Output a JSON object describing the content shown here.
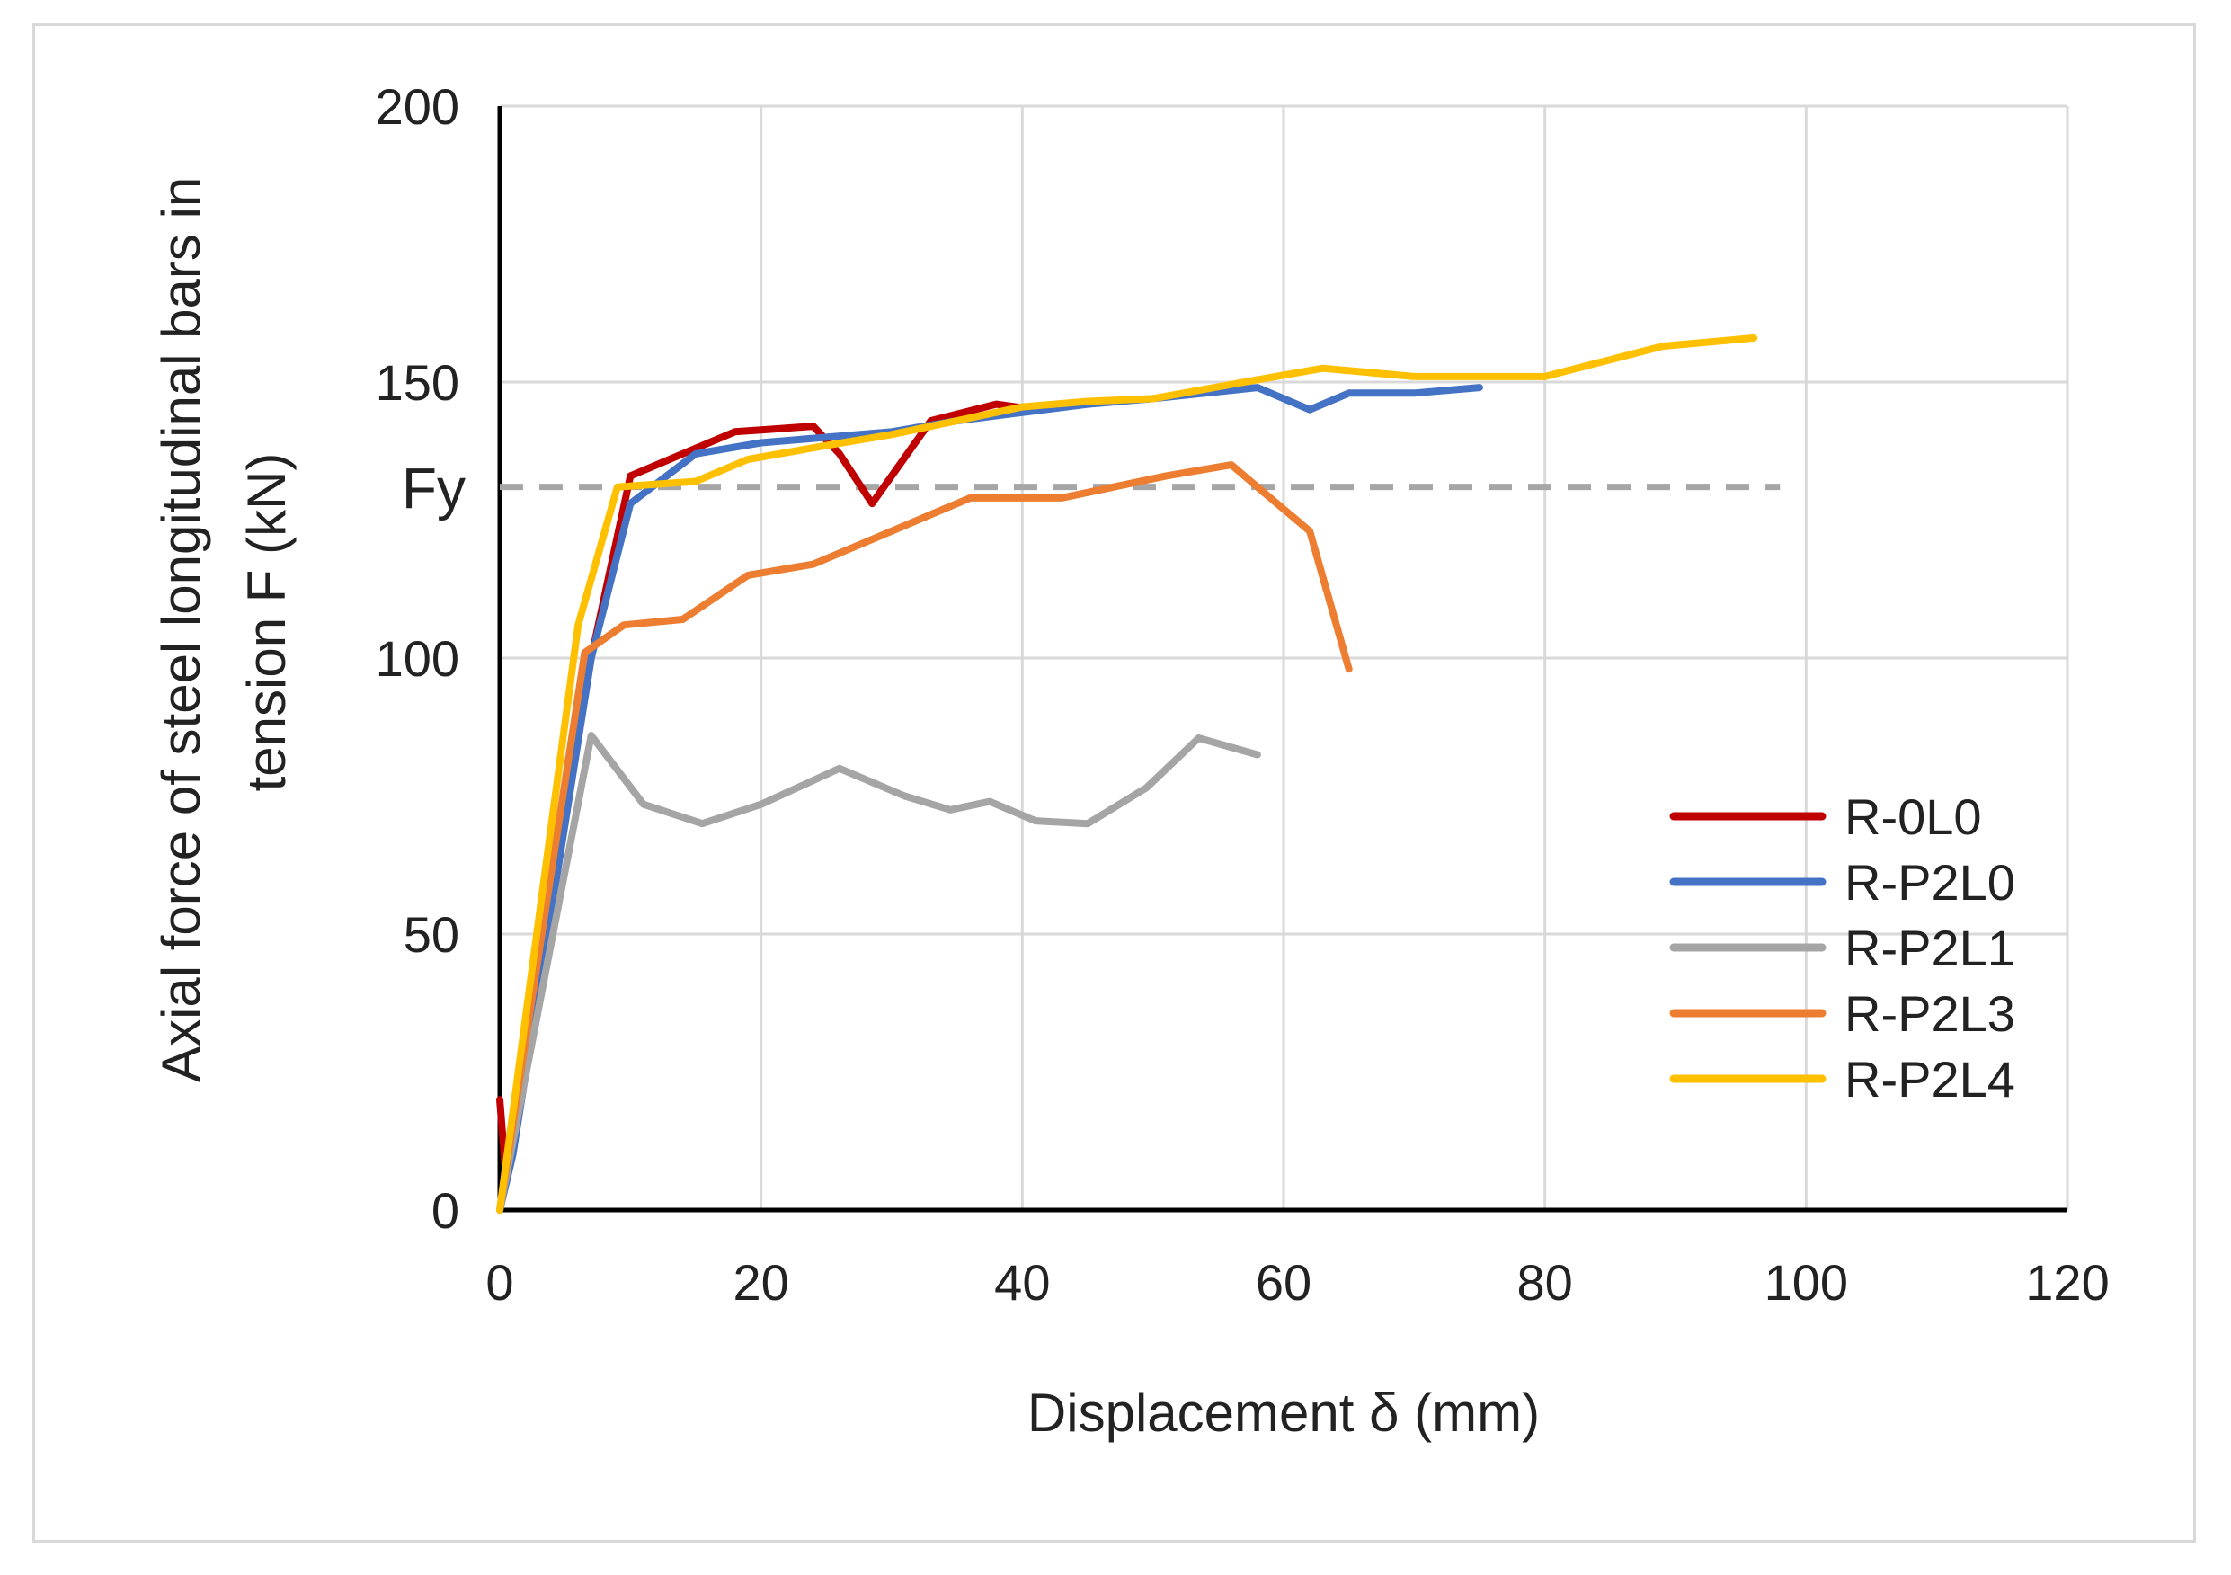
{
  "chart_data": {
    "type": "line",
    "title": "",
    "xlabel": "Displacement δ (mm)",
    "ylabel_lines": [
      "Axial force of steel longitudinal bars in",
      "tension F (kN)"
    ],
    "xlim": [
      0,
      120
    ],
    "ylim": [
      0,
      200
    ],
    "xticks": [
      "0",
      "20",
      "40",
      "60",
      "80",
      "100",
      "120"
    ],
    "yticks": [
      "0",
      "50",
      "100",
      "150",
      "200"
    ],
    "xtick_values": [
      0,
      20,
      40,
      60,
      80,
      100,
      120
    ],
    "ytick_values": [
      0,
      50,
      100,
      150,
      200
    ],
    "grid": true,
    "legend_position": "bottom-right",
    "reference_line": {
      "label": "Fy",
      "y": 131,
      "x_start": 0,
      "x_end": 98,
      "color": "#a6a6a6",
      "style": "dashed"
    },
    "series": [
      {
        "name": "R-0L0",
        "color": "#c00000",
        "x": [
          0,
          0.5,
          1,
          7,
          10,
          15,
          18,
          21,
          24,
          26,
          28.5,
          33,
          38,
          41
        ],
        "y": [
          20,
          5,
          12,
          100,
          133,
          138,
          141,
          141.5,
          142,
          137,
          128,
          143,
          146,
          145
        ]
      },
      {
        "name": "R-P2L0",
        "color": "#4472c4",
        "x": [
          0,
          1,
          7,
          10,
          15,
          20,
          25,
          30,
          35,
          40,
          45,
          50,
          58,
          62,
          65,
          70,
          75
        ],
        "y": [
          0,
          10,
          100,
          128,
          137,
          139,
          140,
          141,
          143,
          144.5,
          146,
          147,
          149,
          145,
          148,
          148,
          149
        ]
      },
      {
        "name": "R-P2L1",
        "color": "#a5a5a5",
        "x": [
          0,
          7,
          11,
          15.5,
          20,
          26,
          31,
          34.5,
          37.5,
          41,
          45,
          49.5,
          53.5,
          58
        ],
        "y": [
          0,
          86,
          73.5,
          70,
          73.5,
          80,
          75,
          72.5,
          74,
          70.5,
          70,
          76.5,
          85.5,
          82.5
        ]
      },
      {
        "name": "R-P2L3",
        "color": "#ed7d31",
        "x": [
          0,
          6.5,
          9.5,
          14,
          19,
          24,
          30,
          36,
          40,
          43,
          47,
          51,
          56,
          58,
          62,
          65
        ],
        "y": [
          0,
          101,
          106,
          107,
          115,
          117,
          123,
          129,
          129,
          129,
          131,
          133,
          135,
          131,
          123,
          98
        ]
      },
      {
        "name": "R-P2L4",
        "color": "#ffc000",
        "x": [
          0,
          6,
          9,
          15,
          19,
          25,
          30,
          35,
          40,
          45,
          50,
          57,
          63,
          70,
          80,
          89,
          96
        ],
        "y": [
          0,
          106,
          131,
          132,
          136,
          138.5,
          140.5,
          143,
          145.5,
          146.5,
          147,
          150,
          152.5,
          151,
          151,
          156.5,
          158
        ]
      }
    ]
  }
}
